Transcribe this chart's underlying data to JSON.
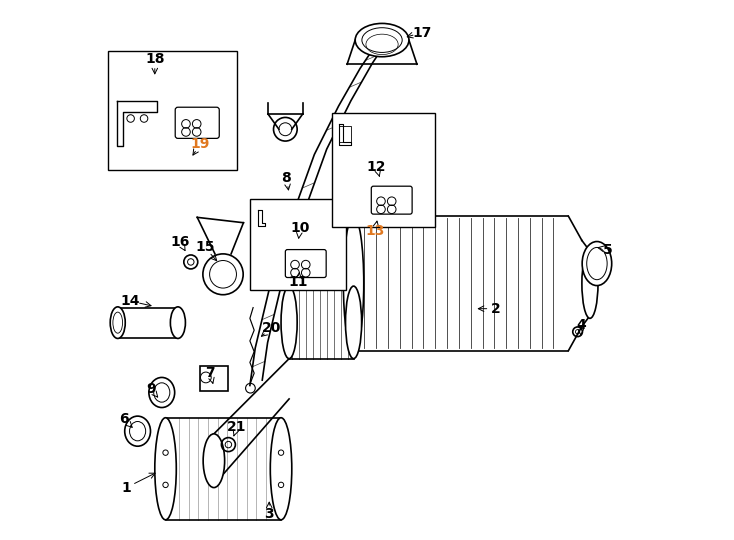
{
  "bg_color": "#ffffff",
  "line_color": "#000000",
  "label_color_default": "#000000",
  "label_color_orange": "#e07820",
  "orange_labels": [
    "19",
    "13"
  ],
  "figsize": [
    7.34,
    5.4
  ],
  "dpi": 100
}
